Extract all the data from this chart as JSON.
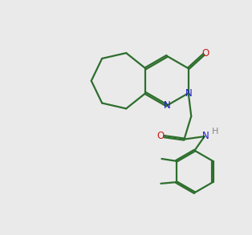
{
  "bg_color": "#eaeaea",
  "bond_color": "#2d6e2d",
  "N_color": "#1a1acc",
  "O_color": "#cc1a1a",
  "H_color": "#888888",
  "lw": 1.6,
  "dbo": 0.032
}
